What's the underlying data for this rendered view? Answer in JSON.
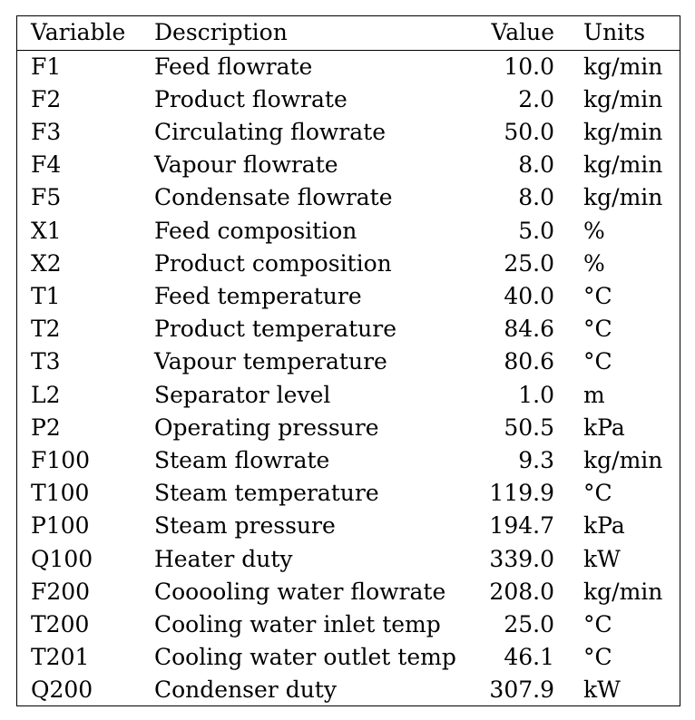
{
  "table": {
    "headers": {
      "variable": "Variable",
      "description": "Description",
      "value": "Value",
      "units": "Units"
    },
    "rows": [
      {
        "variable": "F1",
        "description": "Feed flowrate",
        "value": "10.0",
        "units": "kg/min"
      },
      {
        "variable": "F2",
        "description": "Product flowrate",
        "value": "2.0",
        "units": "kg/min"
      },
      {
        "variable": "F3",
        "description": "Circulating flowrate",
        "value": "50.0",
        "units": "kg/min"
      },
      {
        "variable": "F4",
        "description": "Vapour flowrate",
        "value": "8.0",
        "units": "kg/min"
      },
      {
        "variable": "F5",
        "description": "Condensate flowrate",
        "value": "8.0",
        "units": "kg/min"
      },
      {
        "variable": "X1",
        "description": "Feed composition",
        "value": "5.0",
        "units": "%"
      },
      {
        "variable": "X2",
        "description": "Product composition",
        "value": "25.0",
        "units": "%"
      },
      {
        "variable": "T1",
        "description": "Feed temperature",
        "value": "40.0",
        "units": "°C"
      },
      {
        "variable": "T2",
        "description": "Product temperature",
        "value": "84.6",
        "units": "°C"
      },
      {
        "variable": "T3",
        "description": "Vapour temperature",
        "value": "80.6",
        "units": "°C"
      },
      {
        "variable": "L2",
        "description": "Separator level",
        "value": "1.0",
        "units": "m"
      },
      {
        "variable": "P2",
        "description": "Operating pressure",
        "value": "50.5",
        "units": "kPa"
      },
      {
        "variable": "F100",
        "description": "Steam flowrate",
        "value": "9.3",
        "units": "kg/min"
      },
      {
        "variable": "T100",
        "description": "Steam temperature",
        "value": "119.9",
        "units": "°C"
      },
      {
        "variable": "P100",
        "description": "Steam pressure",
        "value": "194.7",
        "units": "kPa"
      },
      {
        "variable": "Q100",
        "description": "Heater duty",
        "value": "339.0",
        "units": "kW"
      },
      {
        "variable": "F200",
        "description": "Cooooling water flowrate",
        "value": "208.0",
        "units": "kg/min"
      },
      {
        "variable": "T200",
        "description": "Cooling water inlet temp",
        "value": "25.0",
        "units": "°C"
      },
      {
        "variable": "T201",
        "description": "Cooling water outlet temp",
        "value": "46.1",
        "units": "°C"
      },
      {
        "variable": "Q200",
        "description": "Condenser duty",
        "value": "307.9",
        "units": "kW"
      }
    ]
  }
}
